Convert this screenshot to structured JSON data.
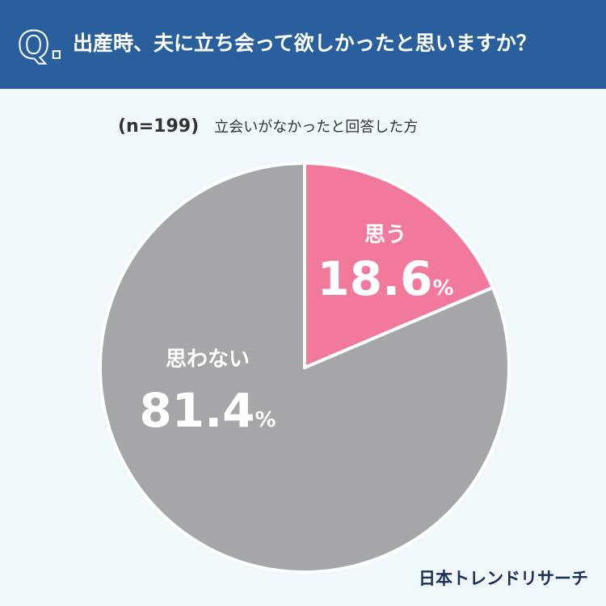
{
  "header": {
    "q_mark": "Q.",
    "question": "出産時、夫に立ち会って欲しかったと思いますか？"
  },
  "subtitle": {
    "n_label": "(n=199)",
    "description": "立会いがなかったと回答した方"
  },
  "chart_data": {
    "type": "pie",
    "categories": [
      "思う",
      "思わない"
    ],
    "values": [
      18.6,
      81.4
    ],
    "unit": "%",
    "colors": [
      "#f17a9c",
      "#a5a6aa"
    ],
    "start_angle": "12 o'clock, clockwise"
  },
  "brand": {
    "logo_text": "日本トレンドリサーチ"
  }
}
